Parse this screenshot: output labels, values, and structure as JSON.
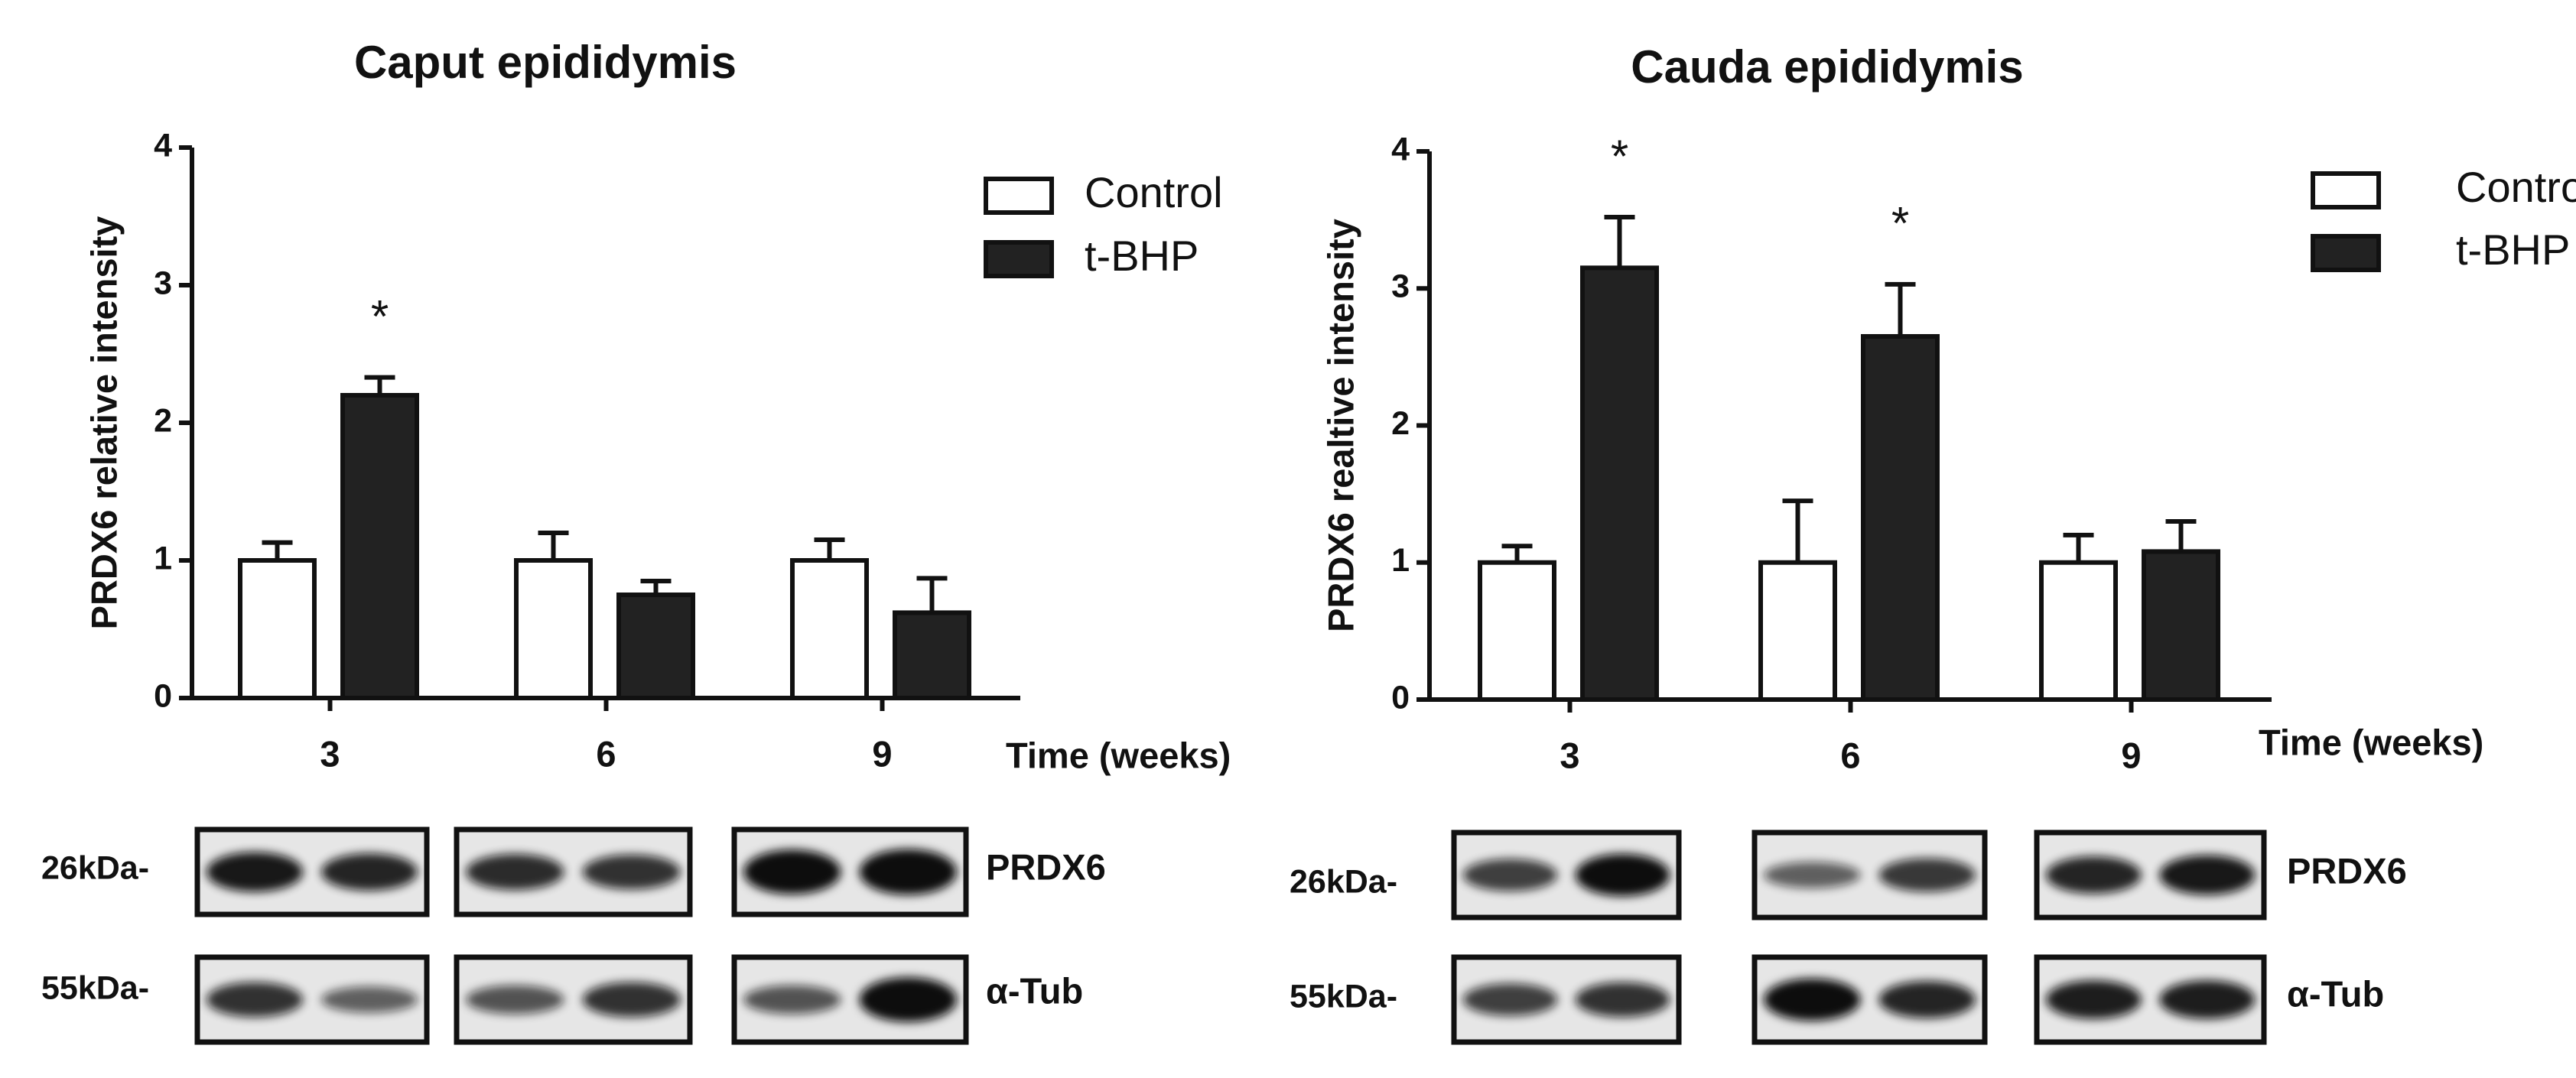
{
  "chart_data": [
    {
      "type": "bar",
      "title": "Caput epididymis",
      "ylabel": "PRDX6 relative intensity",
      "xlabel": "Time (weeks)",
      "categories": [
        "3",
        "6",
        "9"
      ],
      "series": [
        {
          "name": "Control",
          "color": "#ffffff",
          "values": [
            1.0,
            1.0,
            1.0
          ],
          "errors": [
            0.13,
            0.2,
            0.15
          ],
          "annotations": [
            null,
            null,
            null
          ]
        },
        {
          "name": "t-BHP",
          "color": "#222222",
          "values": [
            2.2,
            0.75,
            0.62
          ],
          "errors": [
            0.13,
            0.1,
            0.25
          ],
          "annotations": [
            "*",
            null,
            null
          ]
        }
      ],
      "ylim": [
        0,
        4
      ],
      "yticks": [
        0,
        1,
        2,
        3,
        4
      ],
      "legend": "upper right",
      "blot_labels": {
        "markers": [
          "26kDa-",
          "55kDa-"
        ],
        "proteins": [
          "PRDX6",
          "α-Tub"
        ]
      }
    },
    {
      "type": "bar",
      "title": "Cauda epididymis",
      "ylabel": "PRDX6 realtive intensity",
      "xlabel": "Time (weeks)",
      "categories": [
        "3",
        "6",
        "9"
      ],
      "series": [
        {
          "name": "Control",
          "color": "#ffffff",
          "values": [
            1.0,
            1.0,
            1.0
          ],
          "errors": [
            0.12,
            0.45,
            0.2
          ],
          "annotations": [
            null,
            null,
            null
          ]
        },
        {
          "name": "t-BHP",
          "color": "#222222",
          "values": [
            3.15,
            2.65,
            1.08
          ],
          "errors": [
            0.37,
            0.38,
            0.22
          ],
          "annotations": [
            "*",
            "*",
            null
          ]
        }
      ],
      "ylim": [
        0,
        4
      ],
      "yticks": [
        0,
        1,
        2,
        3,
        4
      ],
      "legend": "upper right",
      "blot_labels": {
        "markers": [
          "26kDa-",
          "55kDa-"
        ],
        "proteins": [
          "PRDX6",
          "α-Tub"
        ]
      }
    }
  ]
}
